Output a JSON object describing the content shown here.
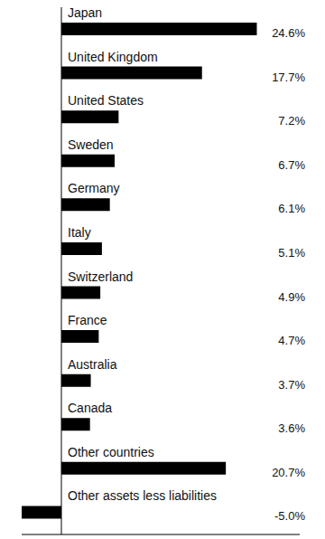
{
  "chart_data": {
    "type": "bar",
    "orientation": "horizontal",
    "categories": [
      "Japan",
      "United Kingdom",
      "United States",
      "Sweden",
      "Germany",
      "Italy",
      "Switzerland",
      "France",
      "Australia",
      "Canada",
      "Other countries",
      "Other assets less liabilities"
    ],
    "values": [
      24.6,
      17.7,
      7.2,
      6.7,
      6.1,
      5.1,
      4.9,
      4.7,
      3.7,
      3.6,
      20.7,
      -5.0
    ],
    "value_labels": [
      "24.6%",
      "17.7%",
      "7.2%",
      "6.7%",
      "6.1%",
      "5.1%",
      "4.9%",
      "4.7%",
      "3.7%",
      "3.6%",
      "20.7%",
      "-5.0%"
    ],
    "color": "#000000",
    "xlim": [
      -5,
      30
    ],
    "xticks": [
      0
    ],
    "data_labels": true,
    "tick_labels": false
  }
}
